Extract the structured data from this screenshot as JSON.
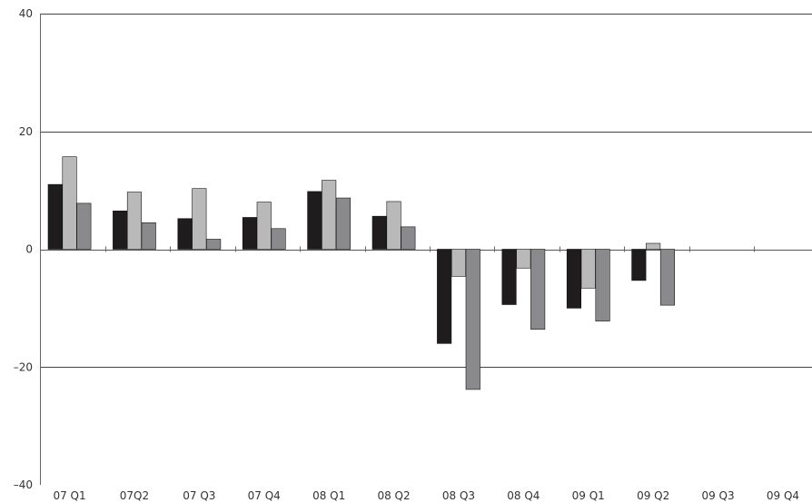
{
  "chart_data": {
    "type": "bar",
    "categories": [
      "07 Q1",
      "07Q2",
      "07 Q3",
      "07 Q4",
      "08 Q1",
      "08 Q2",
      "08 Q3",
      "08 Q4",
      "09 Q1",
      "09 Q2",
      "09 Q3",
      "09 Q4"
    ],
    "series": [
      {
        "values": [
          11,
          6.5,
          5.2,
          5.4,
          9.8,
          5.6,
          -16,
          -9.4,
          -10,
          -5.3,
          null,
          null
        ],
        "color": "#1e1c1d"
      },
      {
        "values": [
          15.7,
          9.7,
          10.3,
          8.0,
          11.7,
          8.1,
          -4.6,
          -3.2,
          -6.6,
          1.0,
          null,
          null
        ],
        "color": "#b9b9b9"
      },
      {
        "values": [
          7.8,
          4.5,
          1.7,
          3.5,
          8.7,
          3.8,
          -23.8,
          -13.6,
          -12.2,
          -9.5,
          null,
          null
        ],
        "color": "#8a8a8c"
      }
    ],
    "ylim": [
      -40,
      40
    ],
    "yticks": [
      40,
      20,
      0,
      -20,
      -40
    ],
    "ytick_labels": [
      "40",
      "20",
      "0",
      "–20",
      "–40"
    ],
    "grid": true
  }
}
